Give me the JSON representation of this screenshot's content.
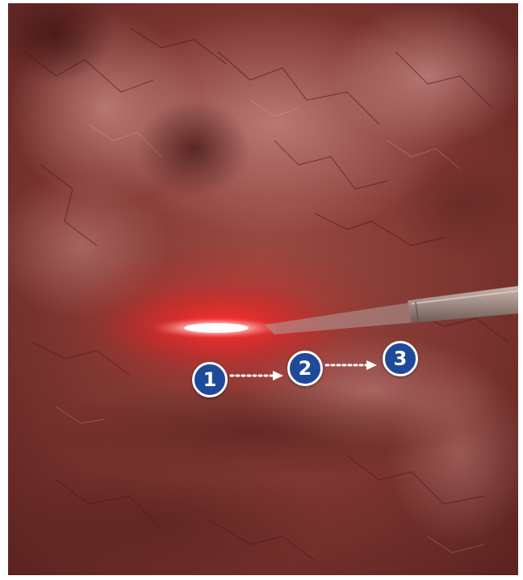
{
  "figure": {
    "description_colors": {
      "tissue": "#6e2a25",
      "laser": "#ff2020",
      "marker_fill": "#1f4a9a",
      "marker_border": "#ffffff"
    },
    "steps": [
      {
        "label": "1"
      },
      {
        "label": "2"
      },
      {
        "label": "3"
      }
    ],
    "icons": {
      "probe": "catheter-probe-icon",
      "arrow": "dotted-arrow-icon"
    }
  }
}
